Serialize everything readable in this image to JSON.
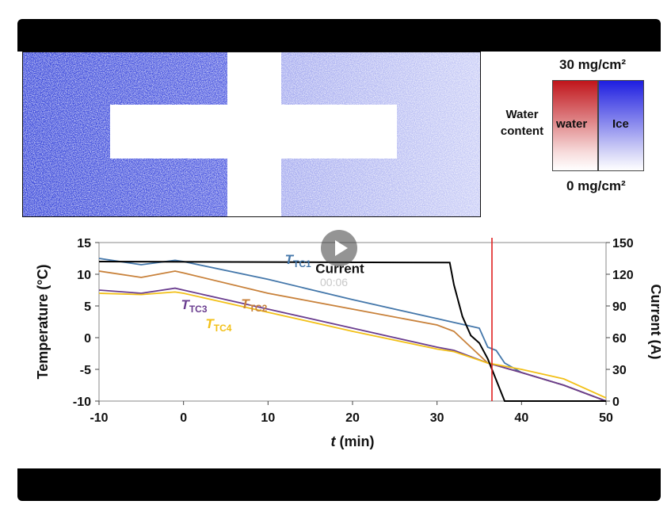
{
  "image_panel": {
    "description_label": "ice-image",
    "legend": {
      "max_label": "30 mg/cm²",
      "min_label": "0 mg/cm²",
      "y_label_line1": "Water",
      "y_label_line2": "content",
      "water_label": "water",
      "ice_label": "Ice"
    }
  },
  "video": {
    "timestamp": "00:06"
  },
  "colors": {
    "tc1": "#4477aa",
    "tc2": "#c8813a",
    "tc3": "#6a3d8f",
    "tc4": "#f2c018",
    "current": "#000000",
    "marker": "#e02020"
  },
  "chart_data": {
    "type": "line",
    "title": "",
    "xlabel": "t (min)",
    "ylabel": "Temperature (°C)",
    "y2label": "Current (A)",
    "xlim": [
      -10,
      50
    ],
    "ylim": [
      -10,
      15
    ],
    "y2lim": [
      0,
      150
    ],
    "xticks": [
      -10,
      0,
      10,
      20,
      30,
      40,
      50
    ],
    "yticks": [
      15,
      10,
      5,
      0,
      -5,
      -10
    ],
    "y2ticks": [
      150,
      120,
      90,
      60,
      30,
      0
    ],
    "vertical_marker_x": 36.5,
    "series": [
      {
        "id": "tc1",
        "name": "T",
        "sub": "TC1",
        "axis": "left",
        "x": [
          -10,
          -5,
          -1,
          0,
          10,
          20,
          30,
          35,
          36,
          37,
          38,
          40,
          45,
          50
        ],
        "y": [
          12.5,
          11.5,
          12.2,
          12.0,
          9.2,
          6.0,
          3.0,
          1.5,
          -1.5,
          -2.0,
          -4.0,
          -5.5,
          -7.5,
          -10.0
        ]
      },
      {
        "id": "tc2",
        "name": "T",
        "sub": "TC2",
        "axis": "left",
        "x": [
          -10,
          -5,
          -1,
          0,
          10,
          20,
          30,
          32,
          36,
          40,
          45,
          50
        ],
        "y": [
          10.5,
          9.5,
          10.5,
          10.2,
          7.0,
          4.5,
          2.0,
          1.0,
          -4.0,
          -5.5,
          -7.5,
          -10.0
        ]
      },
      {
        "id": "tc3",
        "name": "T",
        "sub": "TC3",
        "axis": "left",
        "x": [
          -10,
          -5,
          -1,
          0,
          10,
          20,
          30,
          32,
          36,
          40,
          45,
          50
        ],
        "y": [
          7.5,
          7.0,
          7.8,
          7.5,
          4.5,
          1.5,
          -1.5,
          -2.0,
          -4.0,
          -5.5,
          -7.5,
          -10.0
        ]
      },
      {
        "id": "tc4",
        "name": "T",
        "sub": "TC4",
        "axis": "left",
        "x": [
          -10,
          -5,
          -1,
          0,
          10,
          20,
          30,
          32,
          36,
          40,
          45,
          50
        ],
        "y": [
          7.0,
          6.8,
          7.2,
          7.0,
          4.0,
          1.0,
          -1.8,
          -2.2,
          -4.0,
          -5.0,
          -6.5,
          -9.5
        ]
      },
      {
        "id": "current",
        "name": "Current",
        "sub": "",
        "axis": "right",
        "x": [
          -10,
          31.5,
          32,
          33,
          34,
          35,
          36,
          37,
          38,
          50
        ],
        "y": [
          132,
          131,
          110,
          80,
          62,
          55,
          40,
          20,
          0,
          0
        ]
      }
    ]
  }
}
